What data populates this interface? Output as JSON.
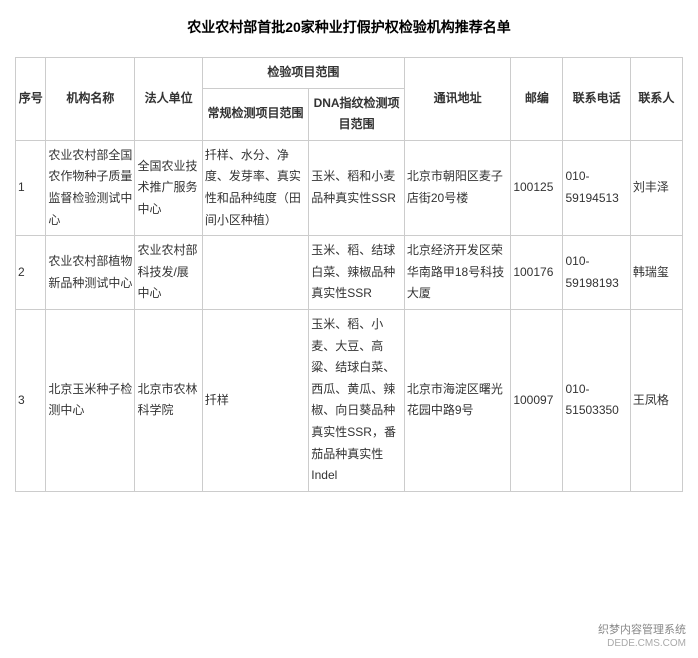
{
  "title": "农业农村部首批20家种业打假护权检验机构推荐名单",
  "headers": {
    "seq": "序号",
    "org": "机构名称",
    "legal": "法人单位",
    "scope_group": "检验项目范围",
    "routine": "常规检测项目范围",
    "dna": "DNA指纹检测项目范围",
    "addr": "通讯地址",
    "zip": "邮编",
    "tel": "联系电话",
    "contact": "联系人"
  },
  "rows": [
    {
      "seq": "1",
      "org": "农业农村部全国农作物种子质量监督检验测试中心",
      "legal": "全国农业技术推广服务中心",
      "routine": "扦样、水分、净度、发芽率、真实性和品种纯度（田间小区种植）",
      "dna": "玉米、稻和小麦品种真实性SSR",
      "addr": "北京市朝阳区麦子店街20号楼",
      "zip": "100125",
      "tel": "010-59194513",
      "contact": "刘丰泽"
    },
    {
      "seq": "2",
      "org": "农业农村部植物新品种测试中心",
      "legal": "农业农村部科技发/展中心",
      "routine": "",
      "dna": "玉米、稻、结球白菜、辣椒品种真实性SSR",
      "addr": "北京经济开发区荣华南路甲18号科技大厦",
      "zip": "100176",
      "tel": "010-59198193",
      "contact": "韩瑞玺"
    },
    {
      "seq": "3",
      "org": "北京玉米种子检测中心",
      "legal": "北京市农林科学院",
      "routine": "扦样",
      "dna": "玉米、稻、小麦、大豆、高粱、结球白菜、西瓜、黄瓜、辣椒、向日葵品种真实性SSR，番茄品种真实性Indel",
      "addr": "北京市海淀区曙光花园中路9号",
      "zip": "100097",
      "tel": "010-51503350",
      "contact": "王凤格"
    }
  ],
  "watermark": {
    "cn": "织梦内容管理系统",
    "en": "DEDE.CMS.COM"
  },
  "colors": {
    "border": "#cccccc",
    "text": "#333333",
    "title": "#000000",
    "background": "#ffffff",
    "watermark": "#999999"
  }
}
